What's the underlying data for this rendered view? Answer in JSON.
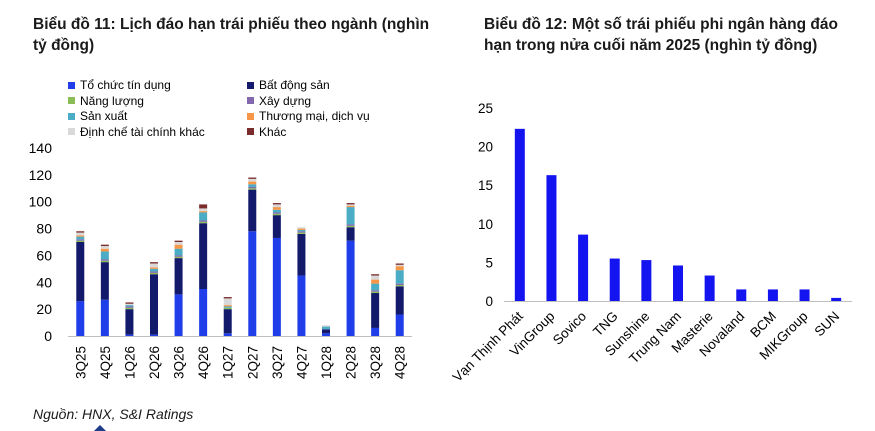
{
  "chart1_title": "Biểu đồ 11: Lịch đáo hạn trái phiếu theo ngành (nghìn tỷ đồng)",
  "chart2_title": "Biểu đồ 12: Một số trái phiếu phi ngân hàng đáo hạn trong nửa cuối năm 2025 (nghìn tỷ đồng)",
  "source": "Nguồn: HNX, S&I Ratings",
  "chart_data": [
    {
      "type": "bar",
      "stacked": true,
      "title": "Biểu đồ 11: Lịch đáo hạn trái phiếu theo ngành (nghìn tỷ đồng)",
      "categories": [
        "3Q25",
        "4Q25",
        "1Q26",
        "2Q26",
        "3Q26",
        "4Q26",
        "1Q27",
        "2Q27",
        "3Q27",
        "4Q27",
        "1Q28",
        "2Q28",
        "3Q28",
        "4Q28"
      ],
      "ylim": [
        0,
        140
      ],
      "yticks": [
        0,
        20,
        40,
        60,
        80,
        100,
        120,
        140
      ],
      "grid": false,
      "legend_position": "top",
      "series": [
        {
          "name": "Tổ chức tín dụng",
          "color": "#1f3de8",
          "values": [
            26,
            27,
            1,
            1,
            31,
            35,
            2,
            78,
            73,
            45,
            2,
            71,
            6,
            16
          ]
        },
        {
          "name": "Bất động sản",
          "color": "#141a6b",
          "values": [
            44,
            28,
            19,
            45,
            27,
            49,
            18,
            31,
            17,
            31,
            3,
            10,
            26,
            21
          ]
        },
        {
          "name": "Năng lượng",
          "color": "#8bbd57",
          "values": [
            1,
            1,
            1,
            1,
            1,
            1,
            1,
            1,
            1,
            1,
            0,
            1,
            1,
            1
          ]
        },
        {
          "name": "Xây dựng",
          "color": "#8468ad",
          "values": [
            1,
            1,
            1,
            1,
            1,
            1,
            0,
            1,
            1,
            1,
            0,
            1,
            1,
            1
          ]
        },
        {
          "name": "Sản xuất",
          "color": "#4bacc6",
          "values": [
            2,
            6,
            1,
            2,
            5,
            6,
            1,
            2,
            2,
            1,
            2,
            13,
            5,
            10
          ]
        },
        {
          "name": "Thương mại, dịch vụ",
          "color": "#f79646",
          "values": [
            1,
            2,
            0,
            1,
            3,
            1,
            1,
            2,
            2,
            1,
            0,
            1,
            3,
            3
          ]
        },
        {
          "name": "Định chế tài chính khác",
          "color": "#d9d9d9",
          "values": [
            2,
            2,
            1,
            3,
            2,
            2,
            5,
            2,
            2,
            1,
            1,
            1,
            3,
            1
          ]
        },
        {
          "name": "Khác",
          "color": "#7a2c2c",
          "values": [
            1,
            1,
            1,
            1,
            1,
            3,
            1,
            1,
            1,
            0,
            0,
            1,
            1,
            1
          ]
        }
      ]
    },
    {
      "type": "bar",
      "title": "Biểu đồ 12: Một số trái phiếu phi ngân hàng đáo hạn trong nửa cuối năm 2025 (nghìn tỷ đồng)",
      "categories": [
        "Vạn Thịnh Phát",
        "VinGroup",
        "Sovico",
        "TNG",
        "Sunshine",
        "Trung Nam",
        "Masterie",
        "Novaland",
        "BCM",
        "MIKGroup",
        "SUN"
      ],
      "values": [
        22.3,
        16.3,
        8.6,
        5.5,
        5.3,
        4.6,
        3.3,
        1.5,
        1.5,
        1.5,
        0.4
      ],
      "color": "#1414f0",
      "ylim": [
        0,
        25
      ],
      "yticks": [
        0,
        5,
        10,
        15,
        20,
        25
      ],
      "grid": false
    }
  ]
}
